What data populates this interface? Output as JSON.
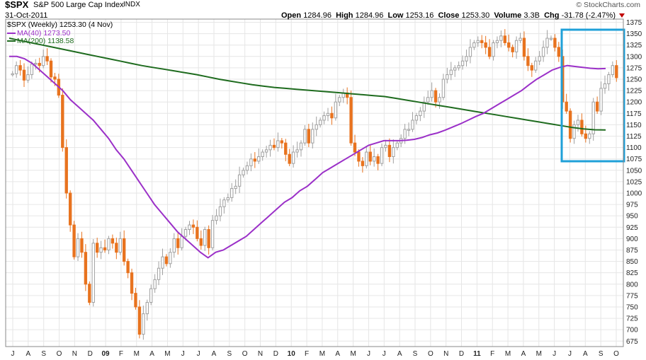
{
  "header": {
    "symbol": "$SPX",
    "name": "S&P 500 Large Cap Index",
    "exchange": "INDX",
    "date": "31-Oct-2011",
    "open_label": "Open",
    "open_value": "1284.96",
    "high_label": "High",
    "high_value": "1284.96",
    "low_label": "Low",
    "low_value": "1253.16",
    "close_label": "Close",
    "close_value": "1253.30",
    "volume_label": "Volume",
    "volume_value": "3.3B",
    "chg_label": "Chg",
    "chg_value": "-31.78 (-2.47%)",
    "copyright": "© StockCharts.com"
  },
  "legend": {
    "price": "$SPX (Weekly) 1253.30 (4 Nov)",
    "ma40": "MA(40) 1273.50",
    "ma200": "MA(200) 1138.58"
  },
  "colors": {
    "up": "#a0a0a0",
    "down": "#e8731f",
    "ma40": "#9b30c8",
    "ma200": "#1e6b1e",
    "highlight": "#1fa0d8",
    "grid": "#e6e6e6"
  },
  "chart_data": {
    "type": "candlestick",
    "ylim": [
      663,
      1382
    ],
    "y_ticks": [
      675,
      700,
      725,
      750,
      775,
      800,
      825,
      850,
      875,
      900,
      925,
      950,
      975,
      1000,
      1025,
      1050,
      1075,
      1100,
      1125,
      1150,
      1175,
      1200,
      1225,
      1250,
      1275,
      1300,
      1325,
      1350,
      1375
    ],
    "x_labels": [
      "J",
      "A",
      "S",
      "O",
      "N",
      "D",
      "09",
      "F",
      "M",
      "A",
      "M",
      "J",
      "J",
      "A",
      "S",
      "O",
      "N",
      "D",
      "10",
      "F",
      "M",
      "A",
      "M",
      "J",
      "J",
      "A",
      "S",
      "O",
      "N",
      "D",
      "11",
      "F",
      "M",
      "A",
      "M",
      "J",
      "J",
      "A",
      "S",
      "O"
    ],
    "closes": [
      1262,
      1280,
      1270,
      1248,
      1260,
      1283,
      1285,
      1280,
      1300,
      1290,
      1255,
      1250,
      1215,
      1100,
      1000,
      930,
      860,
      900,
      870,
      800,
      760,
      890,
      870,
      880,
      875,
      900,
      890,
      870,
      900,
      850,
      825,
      780,
      750,
      690,
      735,
      760,
      790,
      810,
      835,
      860,
      845,
      870,
      900,
      880,
      905,
      920,
      930,
      925,
      900,
      885,
      920,
      880,
      940,
      950,
      970,
      985,
      990,
      1010,
      1015,
      1040,
      1050,
      1060,
      1075,
      1070,
      1080,
      1090,
      1095,
      1105,
      1100,
      1115,
      1110,
      1085,
      1065,
      1090,
      1095,
      1110,
      1140,
      1110,
      1140,
      1150,
      1160,
      1170,
      1175,
      1165,
      1200,
      1210,
      1220,
      1210,
      1110,
      1090,
      1070,
      1060,
      1090,
      1070,
      1080,
      1065,
      1100,
      1105,
      1080,
      1100,
      1110,
      1120,
      1140,
      1140,
      1160,
      1170,
      1180,
      1200,
      1210,
      1225,
      1200,
      1210,
      1250,
      1260,
      1270,
      1275,
      1280,
      1290,
      1300,
      1320,
      1330,
      1335,
      1330,
      1320,
      1300,
      1330,
      1335,
      1345,
      1330,
      1320,
      1310,
      1335,
      1340,
      1300,
      1280,
      1270,
      1290,
      1300,
      1320,
      1340,
      1340,
      1320,
      1300,
      1200,
      1180,
      1120,
      1150,
      1160,
      1130,
      1120,
      1130,
      1200,
      1180,
      1230,
      1240,
      1260,
      1280,
      1253.3
    ],
    "ma40": [
      1300,
      1300,
      1295,
      1285,
      1270,
      1255,
      1240,
      1225,
      1205,
      1190,
      1175,
      1160,
      1140,
      1120,
      1095,
      1075,
      1050,
      1025,
      1000,
      975,
      955,
      935,
      915,
      900,
      885,
      870,
      858,
      870,
      875,
      885,
      895,
      905,
      920,
      935,
      950,
      965,
      980,
      990,
      1005,
      1015,
      1030,
      1045,
      1055,
      1065,
      1075,
      1085,
      1095,
      1105,
      1110,
      1115,
      1115,
      1115,
      1116,
      1118,
      1122,
      1128,
      1132,
      1138,
      1145,
      1152,
      1160,
      1168,
      1175,
      1185,
      1195,
      1205,
      1215,
      1225,
      1238,
      1250,
      1260,
      1270,
      1276,
      1280,
      1278,
      1276,
      1274,
      1273,
      1273.5
    ],
    "ma200": [
      1340,
      1335,
      1330,
      1325,
      1320,
      1315,
      1310,
      1305,
      1300,
      1295,
      1290,
      1285,
      1280,
      1276,
      1272,
      1268,
      1264,
      1260,
      1255,
      1250,
      1246,
      1242,
      1238,
      1235,
      1232,
      1230,
      1228,
      1226,
      1224,
      1222,
      1220,
      1218,
      1216,
      1214,
      1212,
      1208,
      1204,
      1200,
      1196,
      1192,
      1188,
      1184,
      1180,
      1176,
      1172,
      1168,
      1164,
      1160,
      1156,
      1152,
      1148,
      1144,
      1141,
      1139,
      1138.58
    ]
  }
}
